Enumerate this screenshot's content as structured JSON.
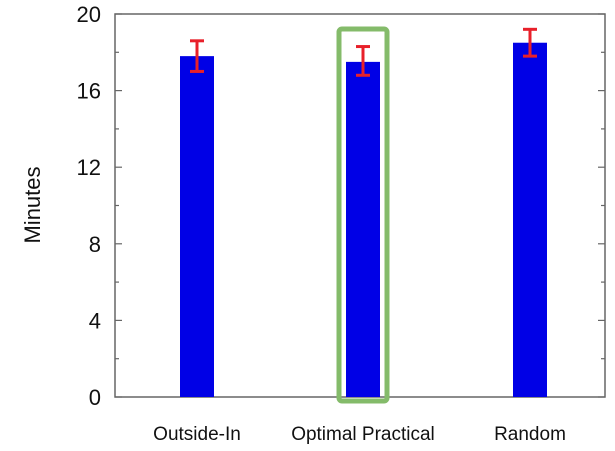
{
  "chart_data": {
    "type": "bar",
    "title": "",
    "xlabel": "",
    "ylabel": "Minutes",
    "ylim": [
      0,
      20
    ],
    "yticks": [
      0,
      4,
      8,
      12,
      16,
      20
    ],
    "categories": [
      "Outside-In",
      "Optimal Practical",
      "Random"
    ],
    "values": [
      17.8,
      17.5,
      18.5
    ],
    "errors": [
      {
        "low": 17.0,
        "high": 18.6
      },
      {
        "low": 16.8,
        "high": 18.3
      },
      {
        "low": 17.8,
        "high": 19.2
      }
    ],
    "highlighted_category": "Optimal Practical",
    "grid": false,
    "colors": {
      "bar": "#0000e6",
      "error_bar": "#e8202a",
      "highlight_box": "#84bb6a",
      "axis": "#666666"
    }
  }
}
